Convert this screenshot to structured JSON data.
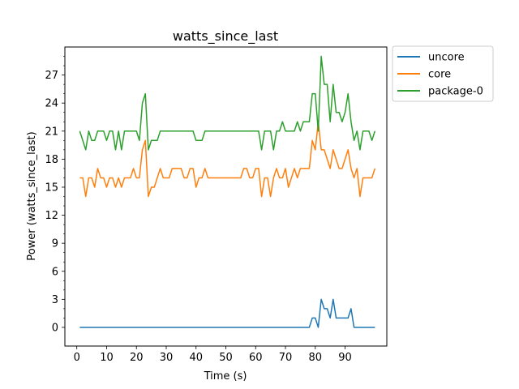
{
  "chart_data": {
    "type": "line",
    "title": "watts_since_last",
    "xlabel": "Time (s)",
    "ylabel": "Power (watts_since_last)",
    "xlim": [
      -4,
      104
    ],
    "ylim": [
      -2,
      30
    ],
    "xticks": [
      0,
      10,
      20,
      30,
      40,
      50,
      60,
      70,
      80,
      90
    ],
    "yticks": [
      0,
      3,
      6,
      9,
      12,
      15,
      18,
      21,
      24,
      27
    ],
    "legend_position": "outside-top-right",
    "grid": false,
    "x": [
      1,
      2,
      3,
      4,
      5,
      6,
      7,
      8,
      9,
      10,
      11,
      12,
      13,
      14,
      15,
      16,
      17,
      18,
      19,
      20,
      21,
      22,
      23,
      24,
      25,
      26,
      27,
      28,
      29,
      30,
      31,
      32,
      33,
      34,
      35,
      36,
      37,
      38,
      39,
      40,
      41,
      42,
      43,
      44,
      45,
      46,
      47,
      48,
      49,
      50,
      51,
      52,
      53,
      54,
      55,
      56,
      57,
      58,
      59,
      60,
      61,
      62,
      63,
      64,
      65,
      66,
      67,
      68,
      69,
      70,
      71,
      72,
      73,
      74,
      75,
      76,
      77,
      78,
      79,
      80,
      81,
      82,
      83,
      84,
      85,
      86,
      87,
      88,
      89,
      90,
      91,
      92,
      93,
      94,
      95,
      96,
      97,
      98,
      99,
      100
    ],
    "series": [
      {
        "name": "uncore",
        "color": "#1f77b4",
        "values": [
          0,
          0,
          0,
          0,
          0,
          0,
          0,
          0,
          0,
          0,
          0,
          0,
          0,
          0,
          0,
          0,
          0,
          0,
          0,
          0,
          0,
          0,
          0,
          0,
          0,
          0,
          0,
          0,
          0,
          0,
          0,
          0,
          0,
          0,
          0,
          0,
          0,
          0,
          0,
          0,
          0,
          0,
          0,
          0,
          0,
          0,
          0,
          0,
          0,
          0,
          0,
          0,
          0,
          0,
          0,
          0,
          0,
          0,
          0,
          0,
          0,
          0,
          0,
          0,
          0,
          0,
          0,
          0,
          0,
          0,
          0,
          0,
          0,
          0,
          0,
          0,
          0,
          0,
          1,
          1,
          0,
          3,
          2,
          2,
          1,
          3,
          1,
          1,
          1,
          1,
          1,
          2,
          0,
          0,
          0,
          0,
          0,
          0,
          0,
          0
        ]
      },
      {
        "name": "core",
        "color": "#ff7f0e",
        "values": [
          16,
          16,
          14,
          16,
          16,
          15,
          17,
          16,
          16,
          15,
          16,
          16,
          15,
          16,
          15,
          16,
          16,
          16,
          17,
          16,
          16,
          19,
          20,
          14,
          15,
          15,
          16,
          17,
          16,
          16,
          16,
          17,
          17,
          17,
          17,
          16,
          16,
          17,
          17,
          15,
          16,
          16,
          17,
          16,
          16,
          16,
          16,
          16,
          16,
          16,
          16,
          16,
          16,
          16,
          16,
          17,
          17,
          16,
          16,
          17,
          17,
          14,
          16,
          16,
          14,
          16,
          17,
          16,
          16,
          17,
          15,
          16,
          17,
          16,
          17,
          17,
          17,
          17,
          20,
          19,
          22,
          19,
          19,
          18,
          17,
          19,
          18,
          17,
          17,
          18,
          19,
          17,
          16,
          17,
          14,
          16,
          16,
          16,
          16,
          17
        ]
      },
      {
        "name": "package-0",
        "color": "#2ca02c",
        "values": [
          21,
          20,
          19,
          21,
          20,
          20,
          21,
          21,
          21,
          20,
          21,
          21,
          19,
          21,
          19,
          21,
          21,
          21,
          21,
          21,
          20,
          24,
          25,
          19,
          20,
          20,
          20,
          21,
          21,
          21,
          21,
          21,
          21,
          21,
          21,
          21,
          21,
          21,
          21,
          20,
          20,
          20,
          21,
          21,
          21,
          21,
          21,
          21,
          21,
          21,
          21,
          21,
          21,
          21,
          21,
          21,
          21,
          21,
          21,
          21,
          21,
          19,
          21,
          21,
          21,
          19,
          21,
          21,
          22,
          21,
          21,
          21,
          21,
          22,
          21,
          22,
          22,
          22,
          25,
          25,
          21,
          29,
          26,
          26,
          22,
          26,
          23,
          23,
          22,
          23,
          25,
          22,
          20,
          21,
          19,
          21,
          21,
          21,
          20,
          21
        ]
      }
    ]
  }
}
